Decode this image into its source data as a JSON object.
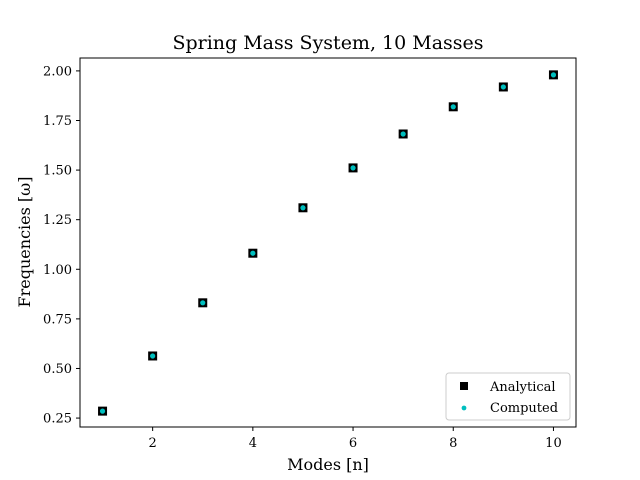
{
  "chart_data": {
    "type": "scatter",
    "title": "Spring Mass System, 10 Masses",
    "xlabel": "Modes [n]",
    "ylabel": "Frequencies [ω]",
    "xlim": [
      0.55,
      10.45
    ],
    "ylim": [
      0.205,
      2.065
    ],
    "xticks": [
      2,
      4,
      6,
      8,
      10
    ],
    "yticks": [
      0.25,
      0.5,
      0.75,
      1.0,
      1.25,
      1.5,
      1.75,
      2.0
    ],
    "xtick_labels": [
      "2",
      "4",
      "6",
      "8",
      "10"
    ],
    "ytick_labels": [
      "0.25",
      "0.50",
      "0.75",
      "1.00",
      "1.25",
      "1.50",
      "1.75",
      "2.00"
    ],
    "grid": false,
    "legend_position": "lower-right",
    "series": [
      {
        "name": "Analytical",
        "marker": "square",
        "color": "#000000",
        "x": [
          1,
          2,
          3,
          4,
          5,
          6,
          7,
          8,
          9,
          10
        ],
        "y": [
          0.285,
          0.563,
          0.831,
          1.081,
          1.31,
          1.511,
          1.682,
          1.819,
          1.919,
          1.98
        ]
      },
      {
        "name": "Computed",
        "marker": "circle",
        "color": "#00bfbf",
        "x": [
          1,
          2,
          3,
          4,
          5,
          6,
          7,
          8,
          9,
          10
        ],
        "y": [
          0.285,
          0.563,
          0.831,
          1.081,
          1.31,
          1.511,
          1.682,
          1.819,
          1.919,
          1.98
        ]
      }
    ]
  }
}
